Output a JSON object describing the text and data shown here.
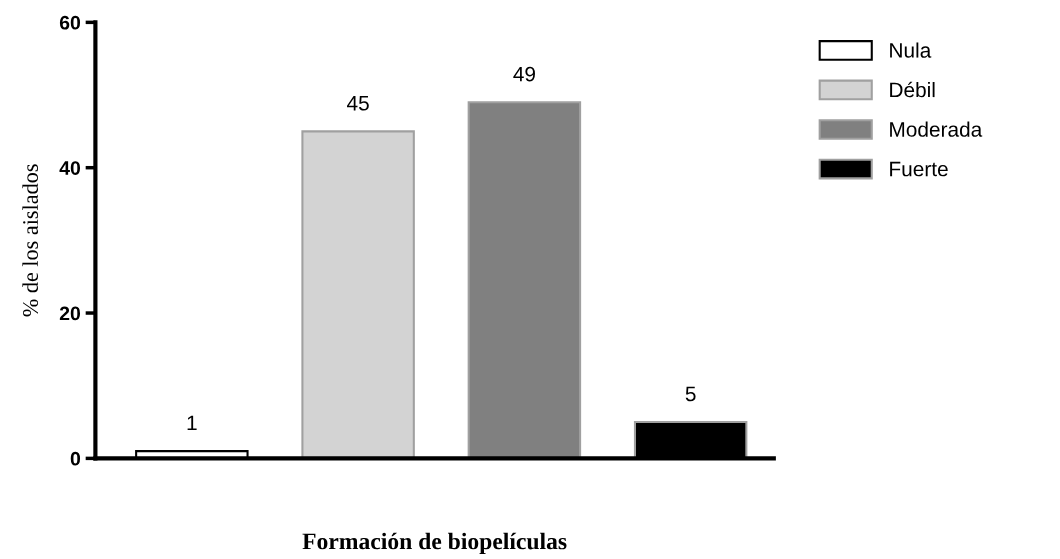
{
  "chart_data": {
    "type": "bar",
    "xlabel": "Formación de biopelículas",
    "ylabel": "% de los aislados",
    "categories": [
      null,
      null,
      null,
      null
    ],
    "series": [
      {
        "name": "Nula",
        "color": "#ffffff",
        "values": [
          1,
          null,
          null,
          null
        ]
      },
      {
        "name": "Débil",
        "color": "#d3d3d3",
        "values": [
          null,
          45,
          null,
          null
        ]
      },
      {
        "name": "Moderada",
        "color": "#808080",
        "values": [
          null,
          null,
          49,
          null
        ]
      },
      {
        "name": "Fuerte",
        "color": "#000000",
        "values": [
          null,
          null,
          null,
          5
        ]
      }
    ],
    "ylim": [
      0,
      60
    ],
    "yticks": [
      0,
      20,
      40,
      60
    ],
    "data_labels": true,
    "legend": "top right",
    "grid": false
  }
}
